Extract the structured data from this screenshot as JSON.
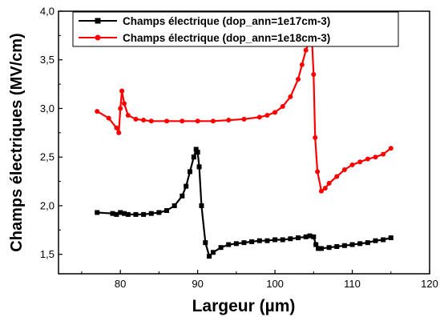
{
  "chart_data": {
    "type": "line",
    "xlabel": "Largeur (µm)",
    "ylabel": "Champs électriques (MV/cm)",
    "xlim": [
      72,
      120
    ],
    "ylim": [
      1.3,
      4.0
    ],
    "x_ticks": [
      80,
      90,
      100,
      110,
      120
    ],
    "x_tick_labels": [
      "80",
      "90",
      "100",
      "110",
      "120"
    ],
    "y_ticks": [
      1.5,
      2.0,
      2.5,
      3.0,
      3.5,
      4.0
    ],
    "y_tick_labels": [
      "1,5",
      "2,0",
      "2,5",
      "3,0",
      "3,5",
      "4,0"
    ],
    "grid": false,
    "legend_position": "top-right",
    "series": [
      {
        "name": "Champs électrique (dop_ann=1e17cm-3)",
        "color": "#000000",
        "marker": "square",
        "x": [
          77,
          79,
          79.5,
          80,
          80.5,
          81,
          82,
          83,
          84,
          85,
          86,
          87,
          88,
          88.5,
          89,
          89.5,
          89.8,
          90,
          90.2,
          90.5,
          91,
          91.5,
          92,
          93,
          94,
          95,
          96,
          97,
          98,
          99,
          100,
          101,
          102,
          103,
          104,
          104.5,
          105,
          105.3,
          105.6,
          106,
          107,
          108,
          109,
          110,
          111,
          112,
          113,
          114,
          115
        ],
        "y": [
          1.93,
          1.92,
          1.91,
          1.93,
          1.92,
          1.91,
          1.91,
          1.91,
          1.92,
          1.93,
          1.95,
          2.0,
          2.1,
          2.2,
          2.35,
          2.5,
          2.58,
          2.55,
          2.4,
          2.0,
          1.62,
          1.48,
          1.52,
          1.57,
          1.6,
          1.61,
          1.62,
          1.63,
          1.64,
          1.64,
          1.65,
          1.65,
          1.66,
          1.67,
          1.68,
          1.69,
          1.68,
          1.6,
          1.56,
          1.56,
          1.57,
          1.58,
          1.59,
          1.6,
          1.61,
          1.62,
          1.64,
          1.65,
          1.67
        ]
      },
      {
        "name": "Champs électrique (dop_ann=1e18cm-3)",
        "color": "#ff0000",
        "marker": "circle",
        "x": [
          77,
          78.5,
          79.5,
          79.8,
          80,
          80.2,
          80.5,
          81,
          82,
          83,
          84,
          86,
          88,
          90,
          92,
          94,
          96,
          98,
          99,
          100,
          101,
          102,
          103,
          103.5,
          104,
          104.5,
          104.8,
          105,
          105.2,
          105.5,
          106,
          106.5,
          107,
          108,
          109,
          110,
          111,
          112,
          113,
          114,
          115
        ],
        "y": [
          2.97,
          2.9,
          2.8,
          2.75,
          3.0,
          3.18,
          3.05,
          2.93,
          2.89,
          2.88,
          2.87,
          2.87,
          2.87,
          2.87,
          2.87,
          2.88,
          2.89,
          2.91,
          2.93,
          2.96,
          3.02,
          3.12,
          3.3,
          3.45,
          3.6,
          3.7,
          3.68,
          3.35,
          2.7,
          2.35,
          2.15,
          2.18,
          2.23,
          2.3,
          2.37,
          2.42,
          2.45,
          2.48,
          2.5,
          2.53,
          2.59
        ]
      }
    ]
  }
}
